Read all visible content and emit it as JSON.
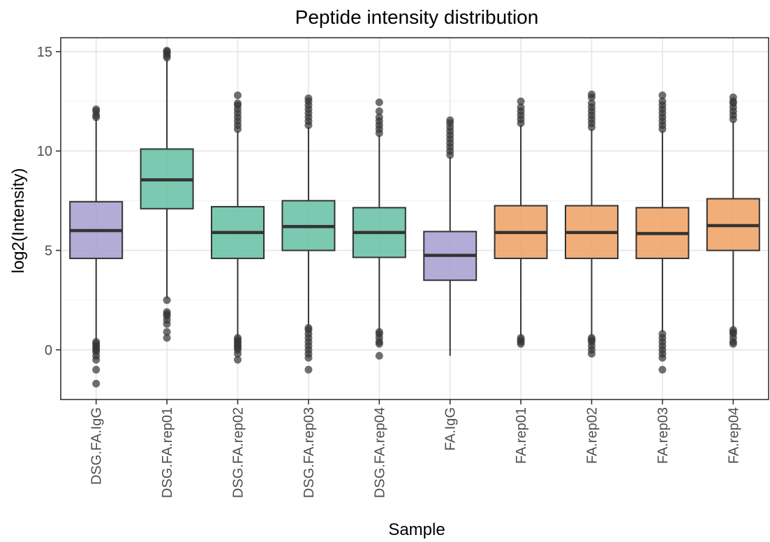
{
  "chart_data": {
    "type": "boxplot",
    "title": "Peptide intensity distribution",
    "xlabel": "Sample",
    "ylabel": "log2(Intensity)",
    "ylim": [
      -2.5,
      15.7
    ],
    "yticks": [
      0,
      5,
      10,
      15
    ],
    "grid": true,
    "legend": "none",
    "colors": {
      "purple": "#a49ed0",
      "teal": "#63c0a2",
      "orange": "#f0a060"
    },
    "boxes": [
      {
        "label": "DSG.FA.IgG",
        "color": "purple",
        "q1": 4.6,
        "median": 6.0,
        "q3": 7.45,
        "whisker_low": 0.5,
        "whisker_high": 11.6,
        "outliers_low": [
          0.4,
          0.3,
          0.2,
          0.1,
          0.0,
          -0.1,
          -0.3,
          -0.5,
          -1.0,
          -1.7
        ],
        "outliers_high": [
          11.7,
          11.8,
          12.0,
          12.1
        ]
      },
      {
        "label": "DSG.FA.rep01",
        "color": "teal",
        "q1": 7.1,
        "median": 8.55,
        "q3": 10.1,
        "whisker_low": 2.6,
        "whisker_high": 14.6,
        "outliers_low": [
          2.5,
          1.9,
          1.8,
          1.7,
          1.5,
          1.3,
          0.9,
          0.6
        ],
        "outliers_high": [
          14.7,
          14.8,
          14.9,
          15.0,
          15.05
        ]
      },
      {
        "label": "DSG.FA.rep02",
        "color": "teal",
        "q1": 4.6,
        "median": 5.9,
        "q3": 7.2,
        "whisker_low": 0.7,
        "whisker_high": 11.0,
        "outliers_low": [
          0.6,
          0.5,
          0.4,
          0.3,
          0.2,
          0.1,
          0.0,
          -0.2,
          -0.5
        ],
        "outliers_high": [
          11.1,
          11.3,
          11.5,
          11.7,
          11.9,
          12.1,
          12.3,
          12.4,
          12.8
        ]
      },
      {
        "label": "DSG.FA.rep03",
        "color": "teal",
        "q1": 5.0,
        "median": 6.2,
        "q3": 7.5,
        "whisker_low": 1.2,
        "whisker_high": 11.2,
        "outliers_low": [
          1.1,
          1.0,
          0.8,
          0.6,
          0.4,
          0.2,
          0.0,
          -0.2,
          -0.4,
          -1.0
        ],
        "outliers_high": [
          11.3,
          11.5,
          11.7,
          11.9,
          12.1,
          12.3,
          12.5,
          12.65
        ]
      },
      {
        "label": "DSG.FA.rep04",
        "color": "teal",
        "q1": 4.65,
        "median": 5.9,
        "q3": 7.15,
        "whisker_low": 1.0,
        "whisker_high": 10.8,
        "outliers_low": [
          0.9,
          0.8,
          0.6,
          0.4,
          0.3,
          -0.3
        ],
        "outliers_high": [
          10.9,
          11.1,
          11.3,
          11.5,
          11.7,
          12.0,
          12.45
        ]
      },
      {
        "label": "FA.IgG",
        "color": "purple",
        "q1": 3.5,
        "median": 4.75,
        "q3": 5.95,
        "whisker_low": -0.3,
        "whisker_high": 9.7,
        "outliers_low": [],
        "outliers_high": [
          9.8,
          10.0,
          10.2,
          10.4,
          10.6,
          10.8,
          11.0,
          11.2,
          11.4,
          11.55
        ]
      },
      {
        "label": "FA.rep01",
        "color": "orange",
        "q1": 4.6,
        "median": 5.9,
        "q3": 7.25,
        "whisker_low": 0.7,
        "whisker_high": 11.3,
        "outliers_low": [
          0.6,
          0.5,
          0.4,
          0.3
        ],
        "outliers_high": [
          11.4,
          11.6,
          11.8,
          12.0,
          12.2,
          12.5
        ]
      },
      {
        "label": "FA.rep02",
        "color": "orange",
        "q1": 4.6,
        "median": 5.9,
        "q3": 7.25,
        "whisker_low": 0.7,
        "whisker_high": 11.1,
        "outliers_low": [
          0.6,
          0.5,
          0.4,
          0.2,
          0.0,
          -0.2
        ],
        "outliers_high": [
          11.2,
          11.4,
          11.6,
          11.8,
          12.0,
          12.2,
          12.4,
          12.7,
          12.85
        ]
      },
      {
        "label": "FA.rep03",
        "color": "orange",
        "q1": 4.6,
        "median": 5.85,
        "q3": 7.15,
        "whisker_low": 0.9,
        "whisker_high": 11.0,
        "outliers_low": [
          0.8,
          0.6,
          0.4,
          0.2,
          0.0,
          -0.2,
          -0.4,
          -1.0
        ],
        "outliers_high": [
          11.1,
          11.3,
          11.5,
          11.7,
          11.9,
          12.1,
          12.3,
          12.5,
          12.8
        ]
      },
      {
        "label": "FA.rep04",
        "color": "orange",
        "q1": 5.0,
        "median": 6.25,
        "q3": 7.6,
        "whisker_low": 1.1,
        "whisker_high": 11.5,
        "outliers_low": [
          1.0,
          0.9,
          0.8,
          0.6,
          0.4,
          0.3
        ],
        "outliers_high": [
          11.6,
          11.8,
          12.0,
          12.2,
          12.4,
          12.5,
          12.7
        ]
      }
    ]
  }
}
